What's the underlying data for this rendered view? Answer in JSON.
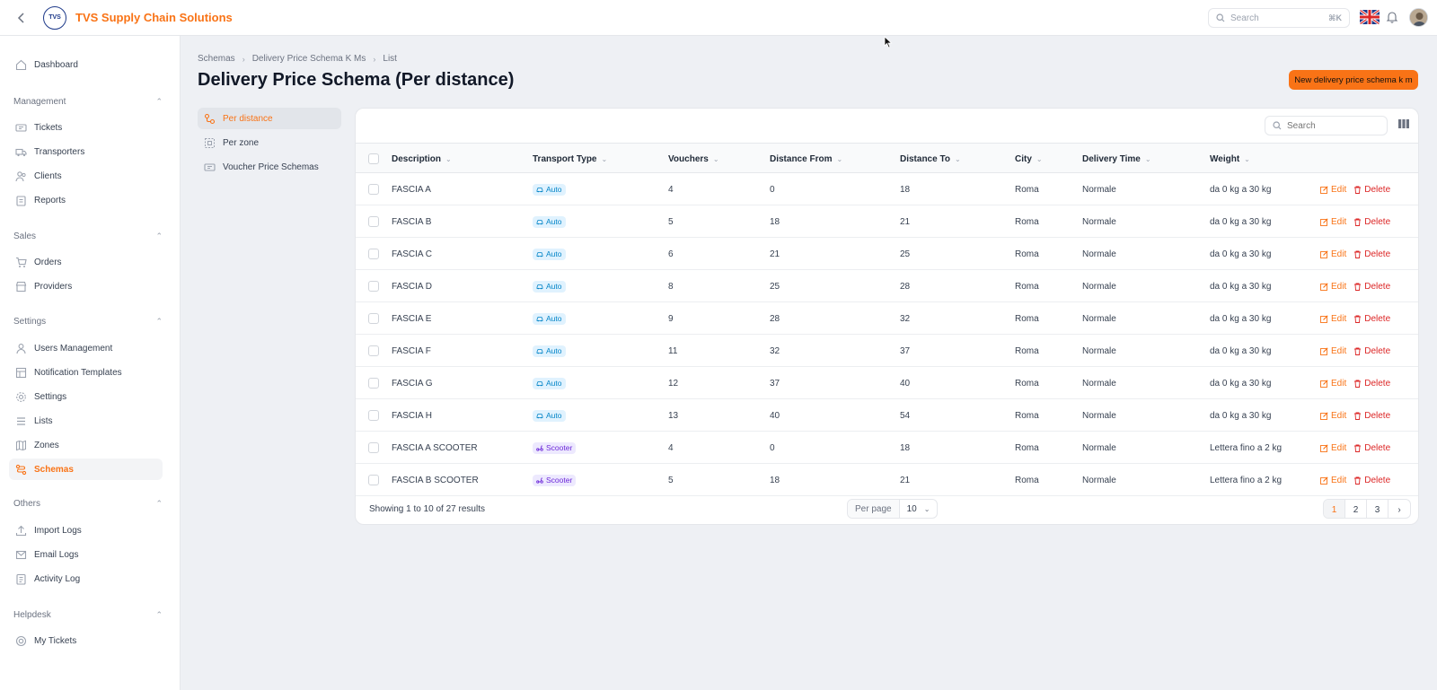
{
  "app": {
    "brand": "TVS Supply Chain Solutions",
    "logo_text": "TVS",
    "search_placeholder": "Search",
    "search_shortcut": "⌘K"
  },
  "sidebar": {
    "dashboard": "Dashboard",
    "groups": [
      {
        "label": "Management",
        "items": [
          "Tickets",
          "Transporters",
          "Clients",
          "Reports"
        ]
      },
      {
        "label": "Sales",
        "items": [
          "Orders",
          "Providers"
        ]
      },
      {
        "label": "Settings",
        "items": [
          "Users Management",
          "Notification Templates",
          "Settings",
          "Lists",
          "Zones",
          "Schemas"
        ]
      },
      {
        "label": "Others",
        "items": [
          "Import Logs",
          "Email Logs",
          "Activity Log"
        ]
      },
      {
        "label": "Helpdesk",
        "items": [
          "My Tickets"
        ]
      }
    ],
    "active_item": "Schemas"
  },
  "breadcrumb": [
    "Schemas",
    "Delivery Price Schema K Ms",
    "List"
  ],
  "page": {
    "title": "Delivery Price Schema (Per distance)",
    "new_button": "New delivery price schema k m"
  },
  "subnav": [
    "Per distance",
    "Per zone",
    "Voucher Price Schemas"
  ],
  "table": {
    "search_placeholder": "Search",
    "columns": [
      "Description",
      "Transport Type",
      "Vouchers",
      "Distance From",
      "Distance To",
      "City",
      "Delivery Time",
      "Weight"
    ],
    "rows": [
      [
        "FASCIA A",
        "Auto",
        "4",
        "0",
        "18",
        "Roma",
        "Normale",
        "da 0 kg a 30 kg"
      ],
      [
        "FASCIA B",
        "Auto",
        "5",
        "18",
        "21",
        "Roma",
        "Normale",
        "da 0 kg a 30 kg"
      ],
      [
        "FASCIA C",
        "Auto",
        "6",
        "21",
        "25",
        "Roma",
        "Normale",
        "da 0 kg a 30 kg"
      ],
      [
        "FASCIA D",
        "Auto",
        "8",
        "25",
        "28",
        "Roma",
        "Normale",
        "da 0 kg a 30 kg"
      ],
      [
        "FASCIA E",
        "Auto",
        "9",
        "28",
        "32",
        "Roma",
        "Normale",
        "da 0 kg a 30 kg"
      ],
      [
        "FASCIA F",
        "Auto",
        "11",
        "32",
        "37",
        "Roma",
        "Normale",
        "da 0 kg a 30 kg"
      ],
      [
        "FASCIA G",
        "Auto",
        "12",
        "37",
        "40",
        "Roma",
        "Normale",
        "da 0 kg a 30 kg"
      ],
      [
        "FASCIA H",
        "Auto",
        "13",
        "40",
        "54",
        "Roma",
        "Normale",
        "da 0 kg a 30 kg"
      ],
      [
        "FASCIA A SCOOTER",
        "Scooter",
        "4",
        "0",
        "18",
        "Roma",
        "Normale",
        "Lettera fino a 2 kg"
      ],
      [
        "FASCIA B SCOOTER",
        "Scooter",
        "5",
        "18",
        "21",
        "Roma",
        "Normale",
        "Lettera fino a 2 kg"
      ]
    ],
    "edit_label": "Edit",
    "delete_label": "Delete"
  },
  "footer": {
    "results": "Showing 1 to 10 of 27 results",
    "per_page_label": "Per page",
    "per_page_value": "10",
    "pages": [
      "1",
      "2",
      "3"
    ],
    "current_page": "1"
  },
  "colors": {
    "accent": "#f97316",
    "danger": "#dc2626",
    "auto_badge": "#0284c7",
    "scooter_badge": "#6d28d9"
  }
}
